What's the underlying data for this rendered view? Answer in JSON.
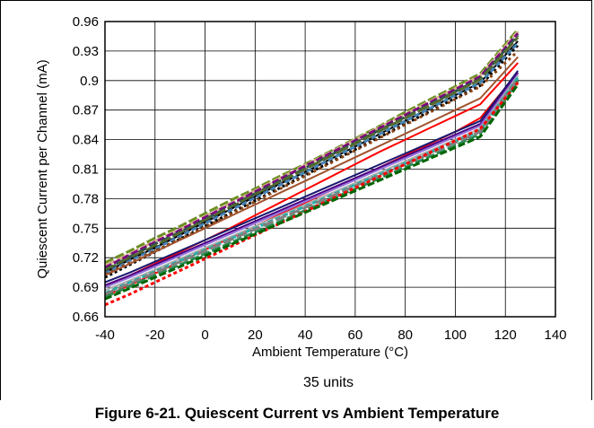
{
  "figure": {
    "caption": "Figure 6-21. Quiescent Current vs Ambient Temperature"
  },
  "chart_data": {
    "type": "line",
    "title": "",
    "xlabel": "Ambient Temperature (°C)",
    "ylabel": "Quiescent Current per Channel (mA)",
    "annotation": "35 units",
    "xlim": [
      -40,
      140
    ],
    "ylim": [
      0.66,
      0.96
    ],
    "x_ticks": [
      -40,
      -20,
      0,
      20,
      40,
      60,
      80,
      100,
      120,
      140
    ],
    "y_ticks": [
      0.66,
      0.69,
      0.72,
      0.75,
      0.78,
      0.81,
      0.84,
      0.87,
      0.9,
      0.93,
      0.96
    ],
    "y_tick_labels": [
      "0.66",
      "0.69",
      "0.72",
      "0.75",
      "0.78",
      "0.81",
      "0.84",
      "0.87",
      "0.9",
      "0.93",
      "0.96"
    ],
    "grid": true,
    "x": [
      -40,
      -30,
      -20,
      -10,
      0,
      10,
      20,
      30,
      40,
      50,
      60,
      70,
      80,
      90,
      100,
      110,
      125
    ],
    "series": [
      {
        "color": "#6b8e23",
        "dash": "10,3",
        "values": [
          0.715,
          0.727,
          0.74,
          0.752,
          0.765,
          0.778,
          0.79,
          0.803,
          0.815,
          0.828,
          0.841,
          0.854,
          0.868,
          0.881,
          0.894,
          0.907,
          0.952
        ]
      },
      {
        "color": "#d2b48c",
        "dash": "12,3",
        "values": [
          0.712,
          0.724,
          0.737,
          0.749,
          0.762,
          0.775,
          0.788,
          0.801,
          0.814,
          0.827,
          0.84,
          0.853,
          0.866,
          0.879,
          0.892,
          0.905,
          0.95
        ]
      },
      {
        "color": "#800080",
        "dash": "8,3",
        "values": [
          0.71,
          0.723,
          0.736,
          0.748,
          0.761,
          0.774,
          0.787,
          0.8,
          0.813,
          0.826,
          0.839,
          0.852,
          0.865,
          0.878,
          0.891,
          0.904,
          0.948
        ]
      },
      {
        "color": "#2f4f4f",
        "dash": "10,4",
        "values": [
          0.708,
          0.721,
          0.734,
          0.746,
          0.759,
          0.772,
          0.785,
          0.798,
          0.811,
          0.824,
          0.837,
          0.85,
          0.863,
          0.876,
          0.889,
          0.902,
          0.946
        ]
      },
      {
        "color": "#556b2f",
        "dash": "14,3",
        "values": [
          0.707,
          0.72,
          0.732,
          0.745,
          0.758,
          0.771,
          0.784,
          0.797,
          0.81,
          0.823,
          0.836,
          0.849,
          0.862,
          0.875,
          0.888,
          0.901,
          0.944
        ]
      },
      {
        "color": "#000000",
        "dash": "",
        "values": [
          0.705,
          0.718,
          0.73,
          0.743,
          0.756,
          0.769,
          0.782,
          0.795,
          0.807,
          0.82,
          0.833,
          0.846,
          0.859,
          0.872,
          0.885,
          0.898,
          0.94
        ]
      },
      {
        "color": "#000000",
        "dash": "3,3",
        "values": [
          0.7,
          0.713,
          0.726,
          0.739,
          0.752,
          0.765,
          0.778,
          0.791,
          0.804,
          0.817,
          0.83,
          0.843,
          0.856,
          0.869,
          0.882,
          0.895,
          0.936
        ]
      },
      {
        "color": "#4682b4",
        "dash": "6,3",
        "values": [
          0.704,
          0.717,
          0.729,
          0.742,
          0.755,
          0.768,
          0.781,
          0.794,
          0.807,
          0.82,
          0.833,
          0.846,
          0.859,
          0.872,
          0.885,
          0.898,
          0.938
        ]
      },
      {
        "color": "#8b4513",
        "dash": "3,4",
        "values": [
          0.703,
          0.715,
          0.727,
          0.739,
          0.751,
          0.764,
          0.777,
          0.79,
          0.803,
          0.816,
          0.829,
          0.842,
          0.855,
          0.868,
          0.881,
          0.894,
          0.93
        ]
      },
      {
        "color": "#a0522d",
        "dash": "",
        "values": [
          0.702,
          0.714,
          0.726,
          0.738,
          0.75,
          0.762,
          0.774,
          0.786,
          0.798,
          0.81,
          0.822,
          0.834,
          0.846,
          0.858,
          0.87,
          0.882,
          0.924
        ]
      },
      {
        "color": "#ff0000",
        "dash": "",
        "values": [
          0.69,
          0.702,
          0.714,
          0.726,
          0.738,
          0.75,
          0.763,
          0.776,
          0.789,
          0.802,
          0.815,
          0.828,
          0.84,
          0.852,
          0.864,
          0.876,
          0.918
        ]
      },
      {
        "color": "#ff0000",
        "dash": "",
        "values": [
          0.681,
          0.692,
          0.704,
          0.716,
          0.728,
          0.74,
          0.752,
          0.764,
          0.776,
          0.788,
          0.8,
          0.812,
          0.824,
          0.836,
          0.848,
          0.862,
          0.908
        ]
      },
      {
        "color": "#191970",
        "dash": "",
        "values": [
          0.695,
          0.705,
          0.716,
          0.727,
          0.738,
          0.749,
          0.76,
          0.771,
          0.782,
          0.793,
          0.804,
          0.815,
          0.826,
          0.837,
          0.848,
          0.859,
          0.91
        ]
      },
      {
        "color": "#4b0082",
        "dash": "",
        "values": [
          0.692,
          0.702,
          0.713,
          0.724,
          0.735,
          0.746,
          0.757,
          0.768,
          0.779,
          0.79,
          0.801,
          0.812,
          0.823,
          0.834,
          0.845,
          0.856,
          0.908
        ]
      },
      {
        "color": "#9370db",
        "dash": "",
        "values": [
          0.69,
          0.7,
          0.711,
          0.722,
          0.733,
          0.744,
          0.755,
          0.766,
          0.777,
          0.788,
          0.799,
          0.81,
          0.821,
          0.832,
          0.843,
          0.854,
          0.906
        ]
      },
      {
        "color": "#a9a9a9",
        "dash": "",
        "values": [
          0.687,
          0.697,
          0.708,
          0.719,
          0.73,
          0.741,
          0.752,
          0.763,
          0.774,
          0.785,
          0.796,
          0.807,
          0.818,
          0.829,
          0.84,
          0.851,
          0.905
        ]
      },
      {
        "color": "#20b2aa",
        "dash": "6,3",
        "values": [
          0.684,
          0.695,
          0.706,
          0.717,
          0.728,
          0.739,
          0.75,
          0.761,
          0.772,
          0.783,
          0.794,
          0.805,
          0.816,
          0.827,
          0.838,
          0.849,
          0.903
        ]
      },
      {
        "color": "#2e8b57",
        "dash": "10,3",
        "values": [
          0.68,
          0.691,
          0.702,
          0.713,
          0.724,
          0.735,
          0.746,
          0.757,
          0.768,
          0.779,
          0.79,
          0.801,
          0.812,
          0.823,
          0.834,
          0.846,
          0.9
        ]
      },
      {
        "color": "#808080",
        "dash": "12,4",
        "values": [
          0.683,
          0.694,
          0.705,
          0.716,
          0.727,
          0.738,
          0.749,
          0.76,
          0.771,
          0.782,
          0.793,
          0.804,
          0.815,
          0.826,
          0.837,
          0.848,
          0.902
        ]
      },
      {
        "color": "#ff0000",
        "dash": "4,3",
        "values": [
          0.672,
          0.683,
          0.695,
          0.707,
          0.719,
          0.731,
          0.743,
          0.755,
          0.767,
          0.779,
          0.791,
          0.803,
          0.815,
          0.827,
          0.839,
          0.851,
          0.898
        ]
      },
      {
        "color": "#006400",
        "dash": "8,3",
        "values": [
          0.678,
          0.689,
          0.7,
          0.711,
          0.722,
          0.733,
          0.744,
          0.755,
          0.766,
          0.777,
          0.788,
          0.799,
          0.81,
          0.821,
          0.832,
          0.843,
          0.896
        ]
      }
    ]
  }
}
